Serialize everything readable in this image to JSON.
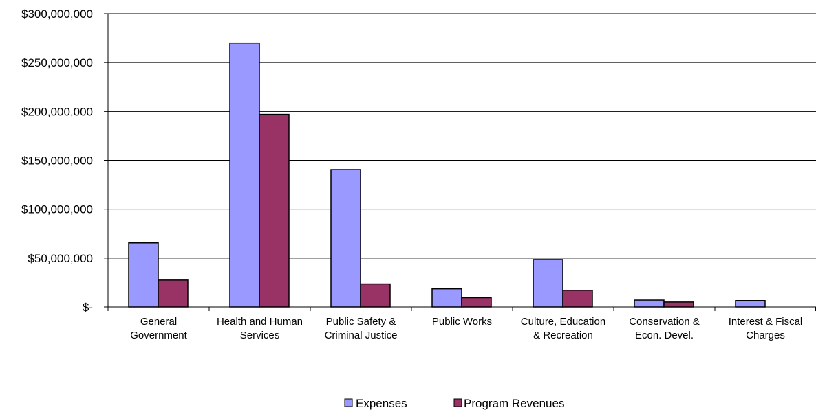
{
  "chart_data": {
    "type": "bar",
    "title": "",
    "xlabel": "",
    "ylabel": "",
    "categories": [
      [
        "General",
        "Government"
      ],
      [
        "Health and Human",
        "Services"
      ],
      [
        "Public Safety &",
        "Criminal Justice"
      ],
      [
        "Public Works"
      ],
      [
        "Culture, Education",
        "& Recreation"
      ],
      [
        "Conservation &",
        "Econ. Devel."
      ],
      [
        "Interest & Fiscal",
        "Charges"
      ]
    ],
    "series": [
      {
        "name": "Expenses",
        "color": "#9999ff",
        "values": [
          65500000,
          270000000,
          140500000,
          18500000,
          48500000,
          7000000,
          6500000
        ]
      },
      {
        "name": "Program Revenues",
        "color": "#993366",
        "values": [
          27500000,
          197000000,
          23500000,
          9500000,
          17000000,
          5000000,
          0
        ]
      }
    ],
    "ylim": [
      0,
      300000000
    ],
    "yticks": [
      0,
      50000000,
      100000000,
      150000000,
      200000000,
      250000000,
      300000000
    ],
    "ytick_labels": [
      "$-",
      "$50,000,000",
      "$100,000,000",
      "$150,000,000",
      "$200,000,000",
      "$250,000,000",
      "$300,000,000"
    ],
    "grid": true,
    "legend_position": "bottom"
  }
}
